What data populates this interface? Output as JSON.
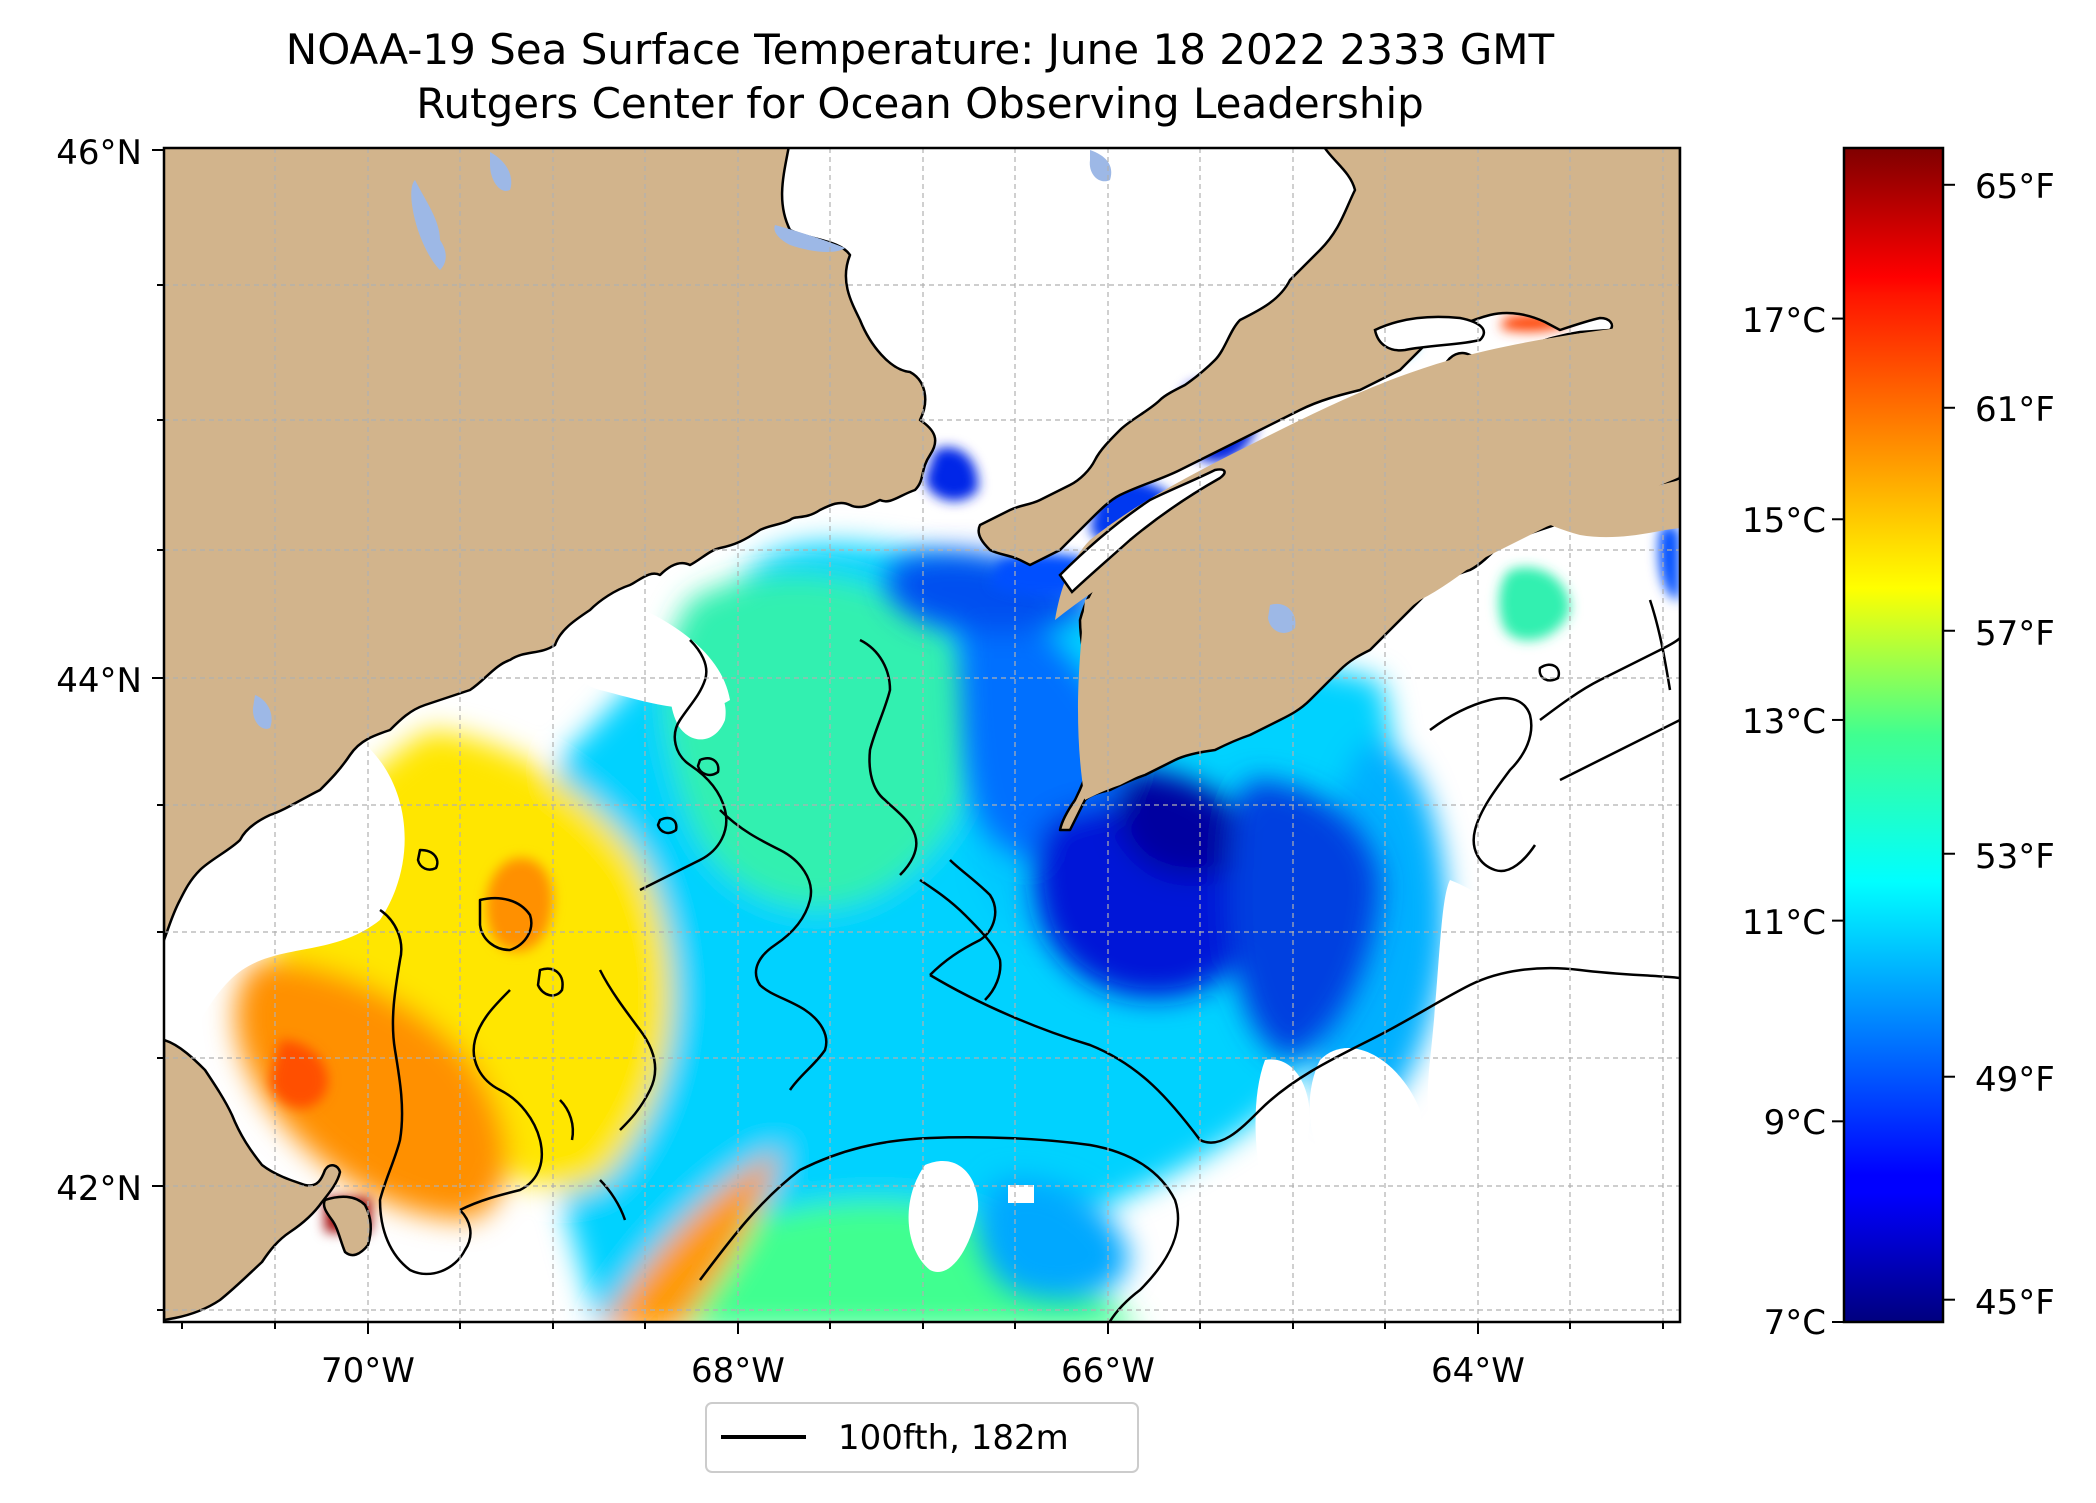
{
  "title": "NOAA-19 Sea Surface Temperature: June 18 2022 2333 GMT",
  "subtitle": "Rutgers Center for Ocean Observing Leadership",
  "map": {
    "lat_ticks": [
      "46°N",
      "44°N",
      "42°N"
    ],
    "lon_ticks": [
      "70°W",
      "68°W",
      "66°W",
      "64°W"
    ],
    "land_color": "#d2b48c",
    "lake_color": "#9db8e6",
    "no_data_color": "#ffffff"
  },
  "legend": {
    "line_label": "100fth, 182m"
  },
  "colorbar": {
    "cmap": "jet",
    "celsius_ticks": [
      "17°C",
      "15°C",
      "13°C",
      "11°C",
      "9°C",
      "7°C"
    ],
    "fahrenheit_ticks": [
      "65°F",
      "61°F",
      "57°F",
      "53°F",
      "49°F",
      "45°F"
    ],
    "range_c": [
      7,
      18.7
    ]
  }
}
